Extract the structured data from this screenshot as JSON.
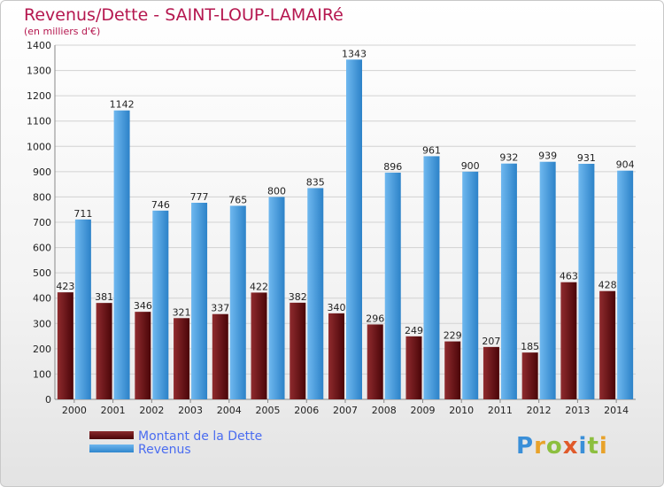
{
  "header": {
    "title": "Revenus/Dette - SAINT-LOUP-LAMAIRé",
    "subtitle": "(en milliers d'€)"
  },
  "colors": {
    "dette": "#6b0f12",
    "revenus": "#3d97dc",
    "title": "#b5174f",
    "legend_text": "#4a6cf0"
  },
  "legend": {
    "items": [
      {
        "label": "Montant de la Dette",
        "color": "#6b0f12"
      },
      {
        "label": "Revenus",
        "color": "#3d97dc"
      }
    ]
  },
  "logo": {
    "text": "Proxiti"
  },
  "chart_data": {
    "type": "bar",
    "title": "Revenus/Dette - SAINT-LOUP-LAMAIRé",
    "subtitle": "(en milliers d'€)",
    "categories": [
      "2000",
      "2001",
      "2002",
      "2003",
      "2004",
      "2005",
      "2006",
      "2007",
      "2008",
      "2009",
      "2010",
      "2011",
      "2012",
      "2013",
      "2014"
    ],
    "series": [
      {
        "name": "Montant de la Dette",
        "values": [
          423,
          381,
          346,
          321,
          337,
          422,
          382,
          340,
          296,
          249,
          229,
          207,
          185,
          463,
          428
        ]
      },
      {
        "name": "Revenus",
        "values": [
          711,
          1142,
          746,
          777,
          765,
          800,
          835,
          1343,
          896,
          961,
          900,
          932,
          939,
          931,
          904
        ]
      }
    ],
    "ylim": [
      0,
      1400
    ],
    "yticks": [
      0,
      100,
      200,
      300,
      400,
      500,
      600,
      700,
      800,
      900,
      1000,
      1100,
      1200,
      1300,
      1400
    ],
    "grid": true,
    "legend_position": "bottom-left"
  }
}
